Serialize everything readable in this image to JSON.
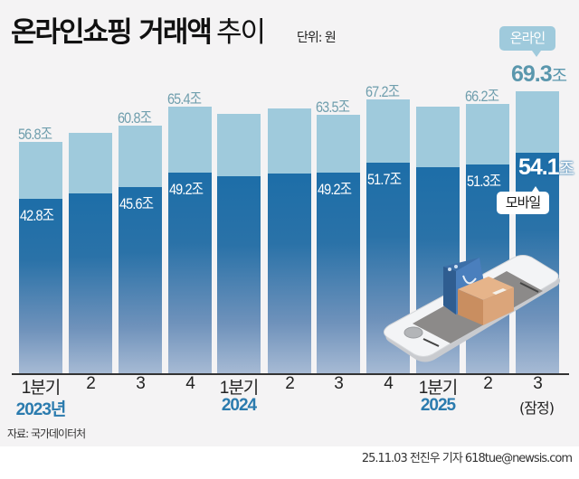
{
  "header": {
    "title_bold": "온라인쇼핑 거래액",
    "title_light": "추이",
    "unit": "단위: 원"
  },
  "legend": {
    "online": "온라인",
    "mobile": "모바일"
  },
  "colors": {
    "online": "#9fcadc",
    "mobile_top": "#1d6ea8",
    "mobile_bottom": "#a6bad4",
    "year_label": "#2b7bae",
    "background": "#f4f3f4"
  },
  "bars": [
    {
      "x_label": "1분기",
      "online": 56.8,
      "mobile": 42.8,
      "online_label": "56.8조",
      "mobile_label": "42.8조"
    },
    {
      "x_label": "2",
      "online": 59.0,
      "mobile": 44.2,
      "online_label": "",
      "mobile_label": ""
    },
    {
      "x_label": "3",
      "online": 60.8,
      "mobile": 45.6,
      "online_label": "60.8조",
      "mobile_label": "45.6조"
    },
    {
      "x_label": "4",
      "online": 65.4,
      "mobile": 49.2,
      "online_label": "65.4조",
      "mobile_label": "49.2조"
    },
    {
      "x_label": "1분기",
      "online": 63.7,
      "mobile": 48.4,
      "online_label": "",
      "mobile_label": ""
    },
    {
      "x_label": "2",
      "online": 65.0,
      "mobile": 49.0,
      "online_label": "",
      "mobile_label": ""
    },
    {
      "x_label": "3",
      "online": 63.5,
      "mobile": 49.2,
      "online_label": "63.5조",
      "mobile_label": "49.2조"
    },
    {
      "x_label": "4",
      "online": 67.2,
      "mobile": 51.7,
      "online_label": "67.2조",
      "mobile_label": "51.7조"
    },
    {
      "x_label": "1분기",
      "online": 65.5,
      "mobile": 50.6,
      "online_label": "",
      "mobile_label": ""
    },
    {
      "x_label": "2",
      "online": 66.2,
      "mobile": 51.3,
      "online_label": "66.2조",
      "mobile_label": "51.3조"
    },
    {
      "x_label": "3",
      "online": 69.3,
      "mobile": 54.1,
      "online_label": "69.3",
      "mobile_label": "54.1"
    }
  ],
  "unit_suffix": "조",
  "years": [
    "2023년",
    "2024",
    "2025"
  ],
  "provisional": "(잠정)",
  "footer": {
    "source": "자료: 국가데이터처",
    "credit": "25.11.03 전진우 기자 618tue@newsis.com"
  },
  "chart_data": {
    "type": "bar",
    "title": "온라인쇼핑 거래액 추이",
    "subtitle": "단위: 원",
    "categories": [
      "2023 1분기",
      "2023 2",
      "2023 3",
      "2023 4",
      "2024 1분기",
      "2024 2",
      "2024 3",
      "2024 4",
      "2025 1분기",
      "2025 2",
      "2025 3 (잠정)"
    ],
    "series": [
      {
        "name": "온라인",
        "values": [
          56.8,
          59.0,
          60.8,
          65.4,
          63.7,
          65.0,
          63.5,
          67.2,
          65.5,
          66.2,
          69.3
        ]
      },
      {
        "name": "모바일",
        "values": [
          42.8,
          44.2,
          45.6,
          49.2,
          48.4,
          49.0,
          49.2,
          51.7,
          50.6,
          51.3,
          54.1
        ]
      }
    ],
    "xlabel": "",
    "ylabel": "조 원",
    "grid": false,
    "legend_position": "inline annotations on last bar",
    "note": "Unlabeled bars (2023 Q2, 2024 Q1, 2024 Q2, 2025 Q1) estimated from bar heights"
  }
}
